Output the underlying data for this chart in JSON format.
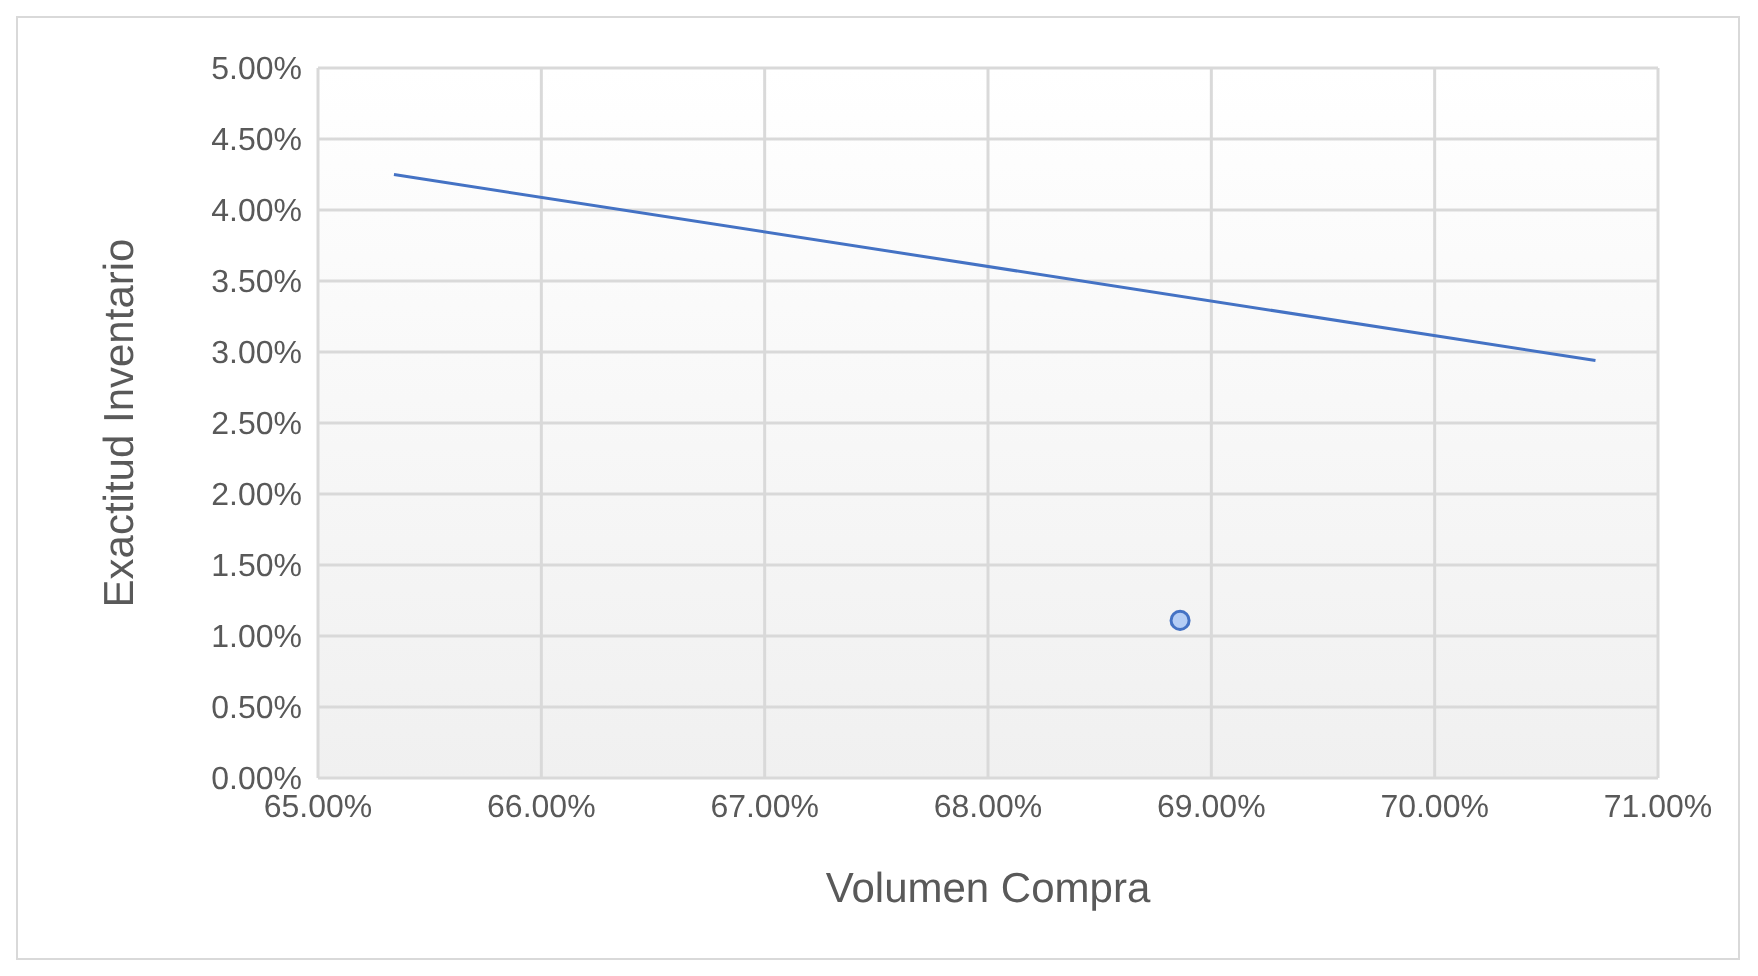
{
  "chart_data": {
    "type": "scatter",
    "xlabel": "Volumen Compra",
    "ylabel": "Exactitud Inventario",
    "series": [
      {
        "type": "line",
        "color": "#4472c4",
        "x": [
          65.34,
          70.72
        ],
        "values": [
          4.25,
          2.94
        ],
        "marker": "none"
      },
      {
        "type": "scatter",
        "color": "#4472c4",
        "x": [
          68.86
        ],
        "values": [
          1.11
        ],
        "marker": "circle"
      }
    ],
    "xlim": [
      65,
      71
    ],
    "ylim": [
      0,
      5
    ],
    "xticks": [
      {
        "value": 65,
        "label": "65.00%"
      },
      {
        "value": 66,
        "label": "66.00%"
      },
      {
        "value": 67,
        "label": "67.00%"
      },
      {
        "value": 68,
        "label": "68.00%"
      },
      {
        "value": 69,
        "label": "69.00%"
      },
      {
        "value": 70,
        "label": "70.00%"
      },
      {
        "value": 71,
        "label": "71.00%"
      }
    ],
    "yticks": [
      {
        "value": 0,
        "label": "0.00%"
      },
      {
        "value": 0.5,
        "label": "0.50%"
      },
      {
        "value": 1,
        "label": "1.00%"
      },
      {
        "value": 1.5,
        "label": "1.50%"
      },
      {
        "value": 2,
        "label": "2.00%"
      },
      {
        "value": 2.5,
        "label": "2.50%"
      },
      {
        "value": 3,
        "label": "3.00%"
      },
      {
        "value": 3.5,
        "label": "3.50%"
      },
      {
        "value": 4,
        "label": "4.00%"
      },
      {
        "value": 4.5,
        "label": "4.50%"
      },
      {
        "value": 5,
        "label": "5.00%"
      }
    ],
    "grid": true,
    "legend": false
  }
}
